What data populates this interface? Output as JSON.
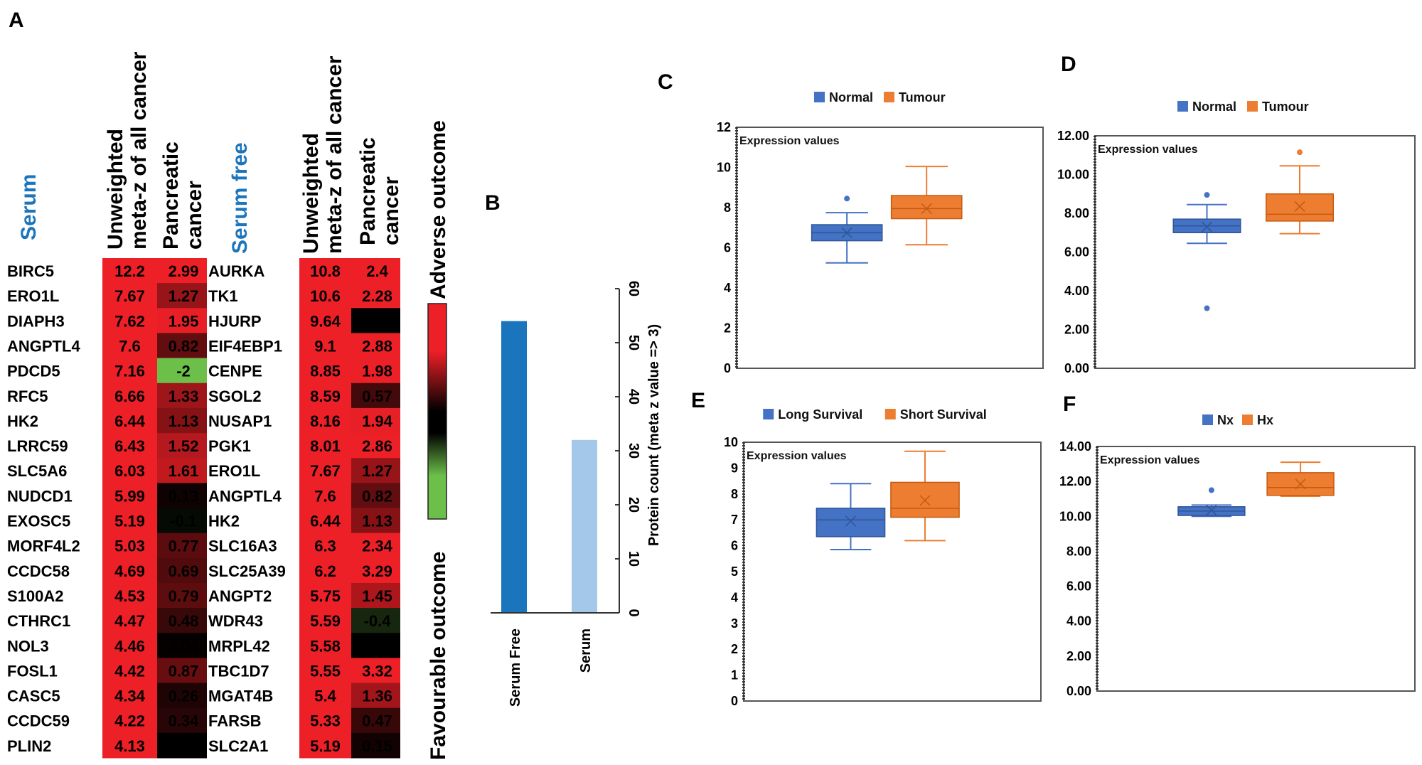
{
  "panel_labels": {
    "a": "A",
    "b": "B",
    "c": "C",
    "d": "D",
    "e": "E",
    "f": "F"
  },
  "heatmap": {
    "left": {
      "group": "Serum",
      "col1_line1": "Unweighted",
      "col1_line2": "meta-z of all cancer",
      "col2_line1": "Pancreatic",
      "col2_line2": "cancer",
      "rows": [
        {
          "gene": "BIRC5",
          "meta_z": "12.2",
          "pancreatic": "2.99"
        },
        {
          "gene": "ERO1L",
          "meta_z": "7.67",
          "pancreatic": "1.27"
        },
        {
          "gene": "DIAPH3",
          "meta_z": "7.62",
          "pancreatic": "1.95"
        },
        {
          "gene": "ANGPTL4",
          "meta_z": "7.6",
          "pancreatic": "0.82"
        },
        {
          "gene": "PDCD5",
          "meta_z": "7.16",
          "pancreatic": "-2"
        },
        {
          "gene": "RFC5",
          "meta_z": "6.66",
          "pancreatic": "1.33"
        },
        {
          "gene": "HK2",
          "meta_z": "6.44",
          "pancreatic": "1.13"
        },
        {
          "gene": "LRRC59",
          "meta_z": "6.43",
          "pancreatic": "1.52"
        },
        {
          "gene": "SLC5A6",
          "meta_z": "6.03",
          "pancreatic": "1.61"
        },
        {
          "gene": "NUDCD1",
          "meta_z": "5.99",
          "pancreatic": "0.13"
        },
        {
          "gene": "EXOSC5",
          "meta_z": "5.19",
          "pancreatic": "-0.1"
        },
        {
          "gene": "MORF4L2",
          "meta_z": "5.03",
          "pancreatic": "0.77"
        },
        {
          "gene": "CCDC58",
          "meta_z": "4.69",
          "pancreatic": "0.69"
        },
        {
          "gene": "S100A2",
          "meta_z": "4.53",
          "pancreatic": "0.79"
        },
        {
          "gene": "CTHRC1",
          "meta_z": "4.47",
          "pancreatic": "0.48"
        },
        {
          "gene": "NOL3",
          "meta_z": "4.46",
          "pancreatic": "0.04"
        },
        {
          "gene": "FOSL1",
          "meta_z": "4.42",
          "pancreatic": "0.87"
        },
        {
          "gene": "CASC5",
          "meta_z": "4.34",
          "pancreatic": "0.26"
        },
        {
          "gene": "CCDC59",
          "meta_z": "4.22",
          "pancreatic": "0.34"
        },
        {
          "gene": "PLIN2",
          "meta_z": "4.13",
          "pancreatic": ""
        }
      ]
    },
    "right": {
      "group": "Serum free",
      "col1_line1": "Unweighted",
      "col1_line2": "meta-z of all cancer",
      "col2_line1": "Pancreatic",
      "col2_line2": "cancer",
      "rows": [
        {
          "gene": "AURKA",
          "meta_z": "10.8",
          "pancreatic": "2.4"
        },
        {
          "gene": "TK1",
          "meta_z": "10.6",
          "pancreatic": "2.28"
        },
        {
          "gene": "HJURP",
          "meta_z": "9.64",
          "pancreatic": ""
        },
        {
          "gene": "EIF4EBP1",
          "meta_z": "9.1",
          "pancreatic": "2.88"
        },
        {
          "gene": "CENPE",
          "meta_z": "8.85",
          "pancreatic": "1.98"
        },
        {
          "gene": "SGOL2",
          "meta_z": "8.59",
          "pancreatic": "0.57"
        },
        {
          "gene": "NUSAP1",
          "meta_z": "8.16",
          "pancreatic": "1.94"
        },
        {
          "gene": "PGK1",
          "meta_z": "8.01",
          "pancreatic": "2.86"
        },
        {
          "gene": "ERO1L",
          "meta_z": "7.67",
          "pancreatic": "1.27"
        },
        {
          "gene": "ANGPTL4",
          "meta_z": "7.6",
          "pancreatic": "0.82"
        },
        {
          "gene": "HK2",
          "meta_z": "6.44",
          "pancreatic": "1.13"
        },
        {
          "gene": "SLC16A3",
          "meta_z": "6.3",
          "pancreatic": "2.34"
        },
        {
          "gene": "SLC25A39",
          "meta_z": "6.2",
          "pancreatic": "3.29"
        },
        {
          "gene": "ANGPT2",
          "meta_z": "5.75",
          "pancreatic": "1.45"
        },
        {
          "gene": "WDR43",
          "meta_z": "5.59",
          "pancreatic": "-0.4"
        },
        {
          "gene": "MRPL42",
          "meta_z": "5.58",
          "pancreatic": "-0"
        },
        {
          "gene": "TBC1D7",
          "meta_z": "5.55",
          "pancreatic": "3.32"
        },
        {
          "gene": "MGAT4B",
          "meta_z": "5.4",
          "pancreatic": "1.36"
        },
        {
          "gene": "FARSB",
          "meta_z": "5.33",
          "pancreatic": "0.47"
        },
        {
          "gene": "SLC2A1",
          "meta_z": "5.19",
          "pancreatic": "0.15"
        }
      ]
    },
    "scale": {
      "top": "Adverse outcome",
      "bottom": "Favourable outcome"
    },
    "colors": {
      "high": "#ee2027",
      "mid": "#000000",
      "low": "#6cc04a",
      "group_label": "#1b75bc"
    }
  },
  "chart_data": [
    {
      "panel": "B",
      "type": "bar",
      "orientation": "rotated 90 degrees",
      "categories": [
        "Serum Free",
        "Serum"
      ],
      "values": [
        54,
        32
      ],
      "colors": [
        "#1b75bc",
        "#a4c8ea"
      ],
      "ylabel": "Protein count (meta z value => 3)",
      "ylim": [
        0,
        60
      ],
      "yticks": [
        "0",
        "10",
        "20",
        "30",
        "40",
        "50",
        "60"
      ],
      "grid": false
    },
    {
      "panel": "C",
      "type": "box",
      "annotation": "Expression values",
      "ylim": [
        0,
        12
      ],
      "yticks": [
        "0",
        "2",
        "4",
        "6",
        "8",
        "10",
        "12"
      ],
      "legend": "top",
      "series": [
        {
          "name": "Normal",
          "color": "#4472c4",
          "min": 5.25,
          "q1": 6.35,
          "median": 6.75,
          "q3": 7.15,
          "max": 7.75,
          "mean": 6.75,
          "outliers": [
            8.45
          ]
        },
        {
          "name": "Tumour",
          "color": "#ed7d31",
          "min": 6.15,
          "q1": 7.45,
          "median": 7.95,
          "q3": 8.6,
          "max": 10.05,
          "mean": 7.95,
          "outliers": []
        }
      ]
    },
    {
      "panel": "D",
      "type": "box",
      "annotation": "Expression values",
      "ylim": [
        0,
        12
      ],
      "yticks": [
        "0.00",
        "2.00",
        "4.00",
        "6.00",
        "8.00",
        "10.00",
        "12.00"
      ],
      "legend": "top",
      "series": [
        {
          "name": "Normal",
          "color": "#4472c4",
          "min": 6.45,
          "q1": 7.0,
          "median": 7.35,
          "q3": 7.7,
          "max": 8.45,
          "mean": 7.3,
          "outliers": [
            8.95,
            3.1
          ]
        },
        {
          "name": "Tumour",
          "color": "#ed7d31",
          "min": 6.95,
          "q1": 7.6,
          "median": 7.95,
          "q3": 9.0,
          "max": 10.45,
          "mean": 8.35,
          "outliers": [
            11.15
          ]
        }
      ]
    },
    {
      "panel": "E",
      "type": "box",
      "annotation": "Expression values",
      "ylim": [
        0,
        10
      ],
      "yticks": [
        "0",
        "1",
        "2",
        "3",
        "4",
        "5",
        "6",
        "7",
        "8",
        "9",
        "10"
      ],
      "legend": "top",
      "series": [
        {
          "name": "Long Survival",
          "color": "#4472c4",
          "min": 5.85,
          "q1": 6.35,
          "median": 7.0,
          "q3": 7.45,
          "max": 8.4,
          "mean": 6.95,
          "outliers": []
        },
        {
          "name": "Short Survival",
          "color": "#ed7d31",
          "min": 6.2,
          "q1": 7.1,
          "median": 7.45,
          "q3": 8.45,
          "max": 9.65,
          "mean": 7.75,
          "outliers": []
        }
      ]
    },
    {
      "panel": "F",
      "type": "box",
      "annotation": "Expression values",
      "ylim": [
        0,
        14
      ],
      "yticks": [
        "0.00",
        "2.00",
        "4.00",
        "6.00",
        "8.00",
        "10.00",
        "12.00",
        "14.00"
      ],
      "legend": "top",
      "series": [
        {
          "name": "Nx",
          "color": "#4472c4",
          "min": 10.0,
          "q1": 10.05,
          "median": 10.3,
          "q3": 10.55,
          "max": 10.65,
          "mean": 10.35,
          "outliers": [
            11.5
          ]
        },
        {
          "name": "Hx",
          "color": "#ed7d31",
          "min": 11.15,
          "q1": 11.2,
          "median": 11.65,
          "q3": 12.5,
          "max": 13.1,
          "mean": 11.85,
          "outliers": []
        }
      ]
    }
  ]
}
